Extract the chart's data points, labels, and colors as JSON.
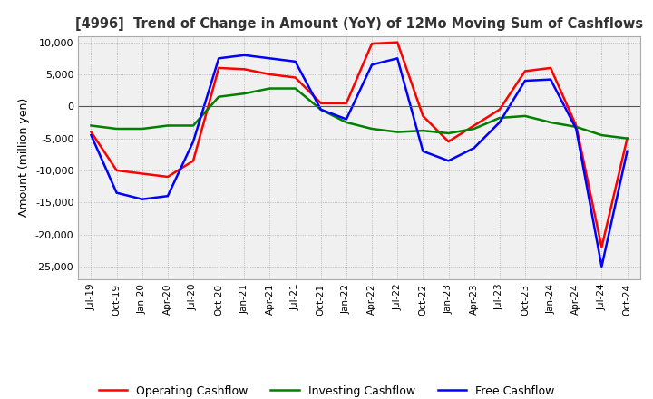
{
  "title": "[4996]  Trend of Change in Amount (YoY) of 12Mo Moving Sum of Cashflows",
  "ylabel": "Amount (million yen)",
  "ylim": [
    -27000,
    11000
  ],
  "yticks": [
    10000,
    5000,
    0,
    -5000,
    -10000,
    -15000,
    -20000,
    -25000
  ],
  "x_labels": [
    "Jul-19",
    "Oct-19",
    "Jan-20",
    "Apr-20",
    "Jul-20",
    "Oct-20",
    "Jan-21",
    "Apr-21",
    "Jul-21",
    "Oct-21",
    "Jan-22",
    "Apr-22",
    "Jul-22",
    "Oct-22",
    "Jan-23",
    "Apr-23",
    "Jul-23",
    "Oct-23",
    "Jan-24",
    "Apr-24",
    "Jul-24",
    "Oct-24"
  ],
  "operating": [
    -4000,
    -10000,
    -10500,
    -11000,
    -8500,
    6000,
    5800,
    5000,
    4500,
    500,
    500,
    9800,
    10000,
    -1500,
    -5500,
    -3000,
    -500,
    5500,
    6000,
    -3000,
    -22000,
    -5000
  ],
  "investing": [
    -3000,
    -3500,
    -3500,
    -3000,
    -3000,
    1500,
    2000,
    2800,
    2800,
    -500,
    -2500,
    -3500,
    -4000,
    -3800,
    -4200,
    -3500,
    -1800,
    -1500,
    -2500,
    -3200,
    -4500,
    -5000
  ],
  "free": [
    -4500,
    -13500,
    -14500,
    -14000,
    -5500,
    7500,
    8000,
    7500,
    7000,
    -500,
    -2000,
    6500,
    7500,
    -7000,
    -8500,
    -6500,
    -2500,
    4000,
    4200,
    -3500,
    -25000,
    -7000
  ],
  "operating_color": "#ff0000",
  "investing_color": "#008000",
  "free_color": "#0000ff",
  "bg_color": "#ffffff",
  "plot_bg_color": "#f0f0f0",
  "grid_color": "#aaaaaa",
  "zero_line_color": "#555555"
}
